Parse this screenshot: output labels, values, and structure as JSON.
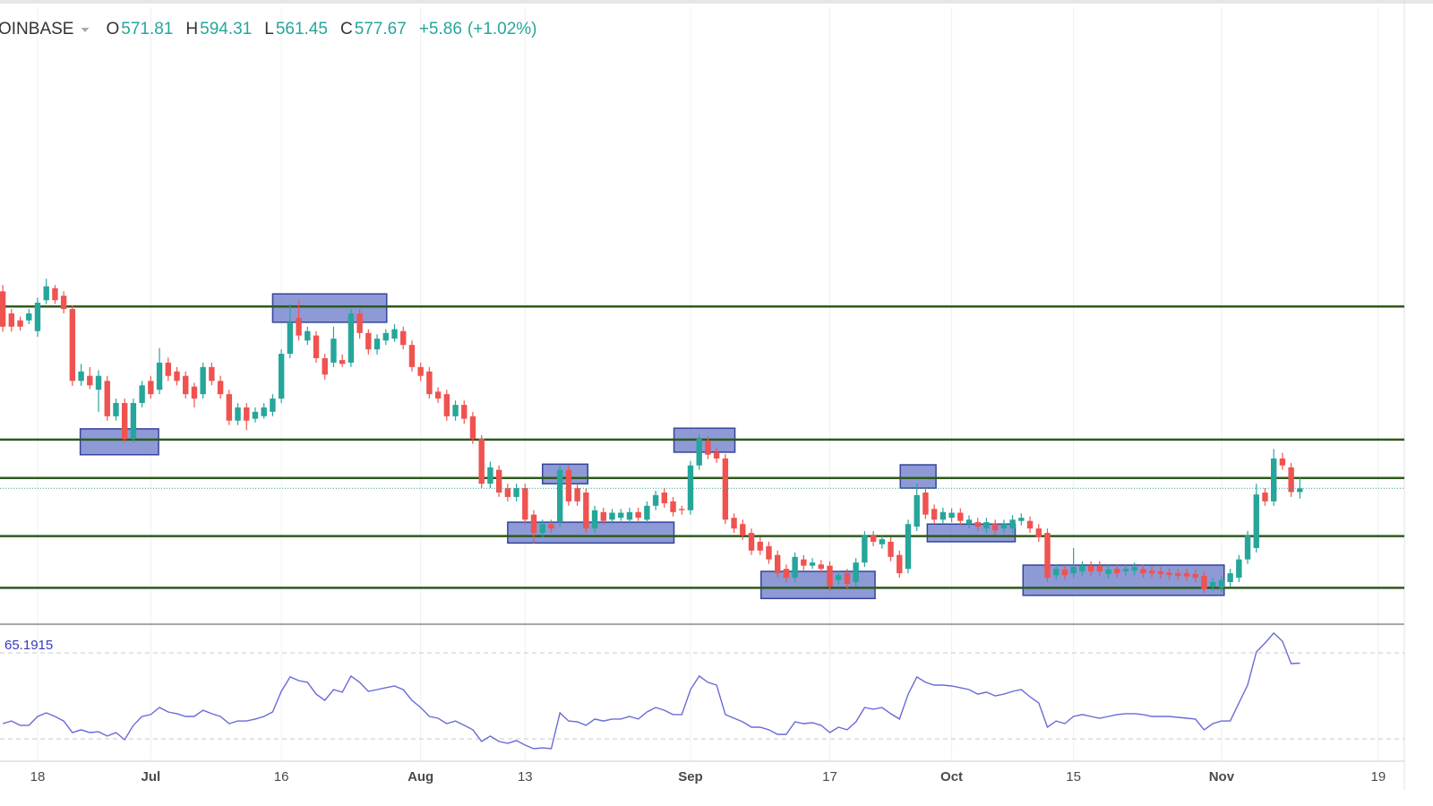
{
  "chart_data": {
    "type": "candlestick",
    "symbol": "OINBASE",
    "ohlc_keys": [
      "O",
      "H",
      "L",
      "C"
    ],
    "change": {
      "value": 5.86,
      "label": "+5.86"
    },
    "change_pct": {
      "value": 1.02,
      "label": "(+1.02%)"
    },
    "up_color": "#26a69a",
    "down_color": "#ef5350",
    "level_color": "#2e5a1c",
    "zone_fill": "#6d7dca",
    "zone_stroke": "#35449a",
    "xlim": [
      -0.32,
      161
    ],
    "xticks": [
      {
        "value": 4,
        "label": "18"
      },
      {
        "value": 17,
        "label": "Jul"
      },
      {
        "value": 32,
        "label": "16"
      },
      {
        "value": 48,
        "label": "Aug"
      },
      {
        "value": 60,
        "label": "13"
      },
      {
        "value": 79,
        "label": "Sep"
      },
      {
        "value": 95,
        "label": "17"
      },
      {
        "value": 109,
        "label": "Oct"
      },
      {
        "value": 123,
        "label": "15"
      },
      {
        "value": 140,
        "label": "Nov"
      },
      {
        "value": 158,
        "label": "19"
      }
    ],
    "ylim": [
      365.1,
      1352
    ],
    "levels": [
      866,
      655,
      594,
      502,
      420
    ],
    "zones": [
      [
        8.9,
        17.9,
        672,
        631
      ],
      [
        31,
        44.1,
        886,
        841
      ],
      [
        62,
        67.2,
        616,
        585
      ],
      [
        58,
        77.1,
        524,
        491
      ],
      [
        77.1,
        84.1,
        673,
        635
      ],
      [
        87.1,
        100.2,
        446,
        403
      ],
      [
        103.1,
        107.2,
        615,
        578
      ],
      [
        106.2,
        116.3,
        521,
        493
      ],
      [
        117.2,
        140.3,
        456,
        408
      ]
    ],
    "candles": [
      [
        890,
        900,
        826,
        834
      ],
      [
        855,
        862,
        826,
        834
      ],
      [
        844,
        850,
        828,
        834
      ],
      [
        844,
        862,
        838,
        855
      ],
      [
        827,
        880,
        818,
        872
      ],
      [
        876,
        910,
        870,
        898
      ],
      [
        895,
        900,
        870,
        876
      ],
      [
        883,
        890,
        855,
        862
      ],
      [
        862,
        868,
        740,
        748
      ],
      [
        748,
        775,
        740,
        763
      ],
      [
        756,
        770,
        735,
        741
      ],
      [
        734,
        765,
        699,
        756
      ],
      [
        748,
        756,
        685,
        692
      ],
      [
        692,
        720,
        685,
        713
      ],
      [
        713,
        720,
        650,
        656
      ],
      [
        656,
        720,
        650,
        713
      ],
      [
        713,
        748,
        706,
        741
      ],
      [
        748,
        756,
        720,
        727
      ],
      [
        734,
        800,
        727,
        777
      ],
      [
        777,
        785,
        748,
        756
      ],
      [
        763,
        770,
        741,
        748
      ],
      [
        756,
        763,
        720,
        727
      ],
      [
        739,
        745,
        706,
        720
      ],
      [
        727,
        777,
        720,
        770
      ],
      [
        770,
        777,
        741,
        748
      ],
      [
        748,
        756,
        720,
        727
      ],
      [
        727,
        734,
        678,
        685
      ],
      [
        685,
        713,
        678,
        706
      ],
      [
        706,
        713,
        670,
        685
      ],
      [
        688,
        706,
        682,
        699
      ],
      [
        692,
        713,
        688,
        706
      ],
      [
        699,
        727,
        692,
        720
      ],
      [
        720,
        798,
        713,
        791
      ],
      [
        791,
        870,
        784,
        841
      ],
      [
        848,
        875,
        812,
        820
      ],
      [
        812,
        834,
        805,
        827
      ],
      [
        820,
        827,
        777,
        784
      ],
      [
        784,
        791,
        750,
        758
      ],
      [
        777,
        834,
        770,
        815
      ],
      [
        781,
        790,
        770,
        775
      ],
      [
        777,
        862,
        770,
        855
      ],
      [
        855,
        862,
        815,
        824
      ],
      [
        824,
        830,
        790,
        798
      ],
      [
        798,
        822,
        790,
        815
      ],
      [
        812,
        830,
        805,
        824
      ],
      [
        815,
        838,
        810,
        830
      ],
      [
        827,
        834,
        798,
        805
      ],
      [
        805,
        812,
        763,
        770
      ],
      [
        770,
        777,
        748,
        756
      ],
      [
        763,
        770,
        720,
        727
      ],
      [
        731,
        738,
        713,
        720
      ],
      [
        727,
        734,
        685,
        692
      ],
      [
        692,
        717,
        685,
        710
      ],
      [
        710,
        717,
        680,
        688
      ],
      [
        692,
        699,
        648,
        656
      ],
      [
        656,
        662,
        578,
        585
      ],
      [
        585,
        620,
        578,
        611
      ],
      [
        607,
        614,
        564,
        571
      ],
      [
        578,
        585,
        557,
        564
      ],
      [
        564,
        585,
        557,
        578
      ],
      [
        578,
        585,
        520,
        528
      ],
      [
        536,
        543,
        490,
        507
      ],
      [
        507,
        528,
        500,
        521
      ],
      [
        521,
        528,
        507,
        514
      ],
      [
        524,
        614,
        517,
        607
      ],
      [
        607,
        614,
        550,
        557
      ],
      [
        578,
        585,
        550,
        557
      ],
      [
        571,
        578,
        507,
        514
      ],
      [
        514,
        550,
        507,
        543
      ],
      [
        540,
        547,
        520,
        526
      ],
      [
        528,
        545,
        521,
        539
      ],
      [
        531,
        545,
        526,
        539
      ],
      [
        528,
        547,
        521,
        540
      ],
      [
        540,
        547,
        526,
        531
      ],
      [
        528,
        557,
        521,
        550
      ],
      [
        550,
        574,
        543,
        567
      ],
      [
        571,
        578,
        547,
        554
      ],
      [
        557,
        564,
        533,
        540
      ],
      [
        545,
        550,
        536,
        543
      ],
      [
        543,
        621,
        536,
        614
      ],
      [
        614,
        663,
        607,
        656
      ],
      [
        653,
        660,
        624,
        631
      ],
      [
        635,
        642,
        618,
        625
      ],
      [
        625,
        632,
        521,
        528
      ],
      [
        531,
        538,
        507,
        514
      ],
      [
        521,
        528,
        496,
        503
      ],
      [
        507,
        514,
        472,
        479
      ],
      [
        493,
        500,
        472,
        479
      ],
      [
        486,
        493,
        458,
        465
      ],
      [
        472,
        479,
        436,
        443
      ],
      [
        450,
        457,
        429,
        436
      ],
      [
        436,
        476,
        429,
        469
      ],
      [
        465,
        472,
        448,
        455
      ],
      [
        455,
        467,
        450,
        460
      ],
      [
        457,
        464,
        443,
        450
      ],
      [
        455,
        462,
        415,
        422
      ],
      [
        432,
        447,
        425,
        440
      ],
      [
        443,
        450,
        419,
        426
      ],
      [
        429,
        467,
        422,
        460
      ],
      [
        460,
        510,
        453,
        503
      ],
      [
        503,
        510,
        486,
        493
      ],
      [
        489,
        504,
        482,
        497
      ],
      [
        493,
        500,
        462,
        469
      ],
      [
        472,
        479,
        436,
        443
      ],
      [
        450,
        528,
        443,
        521
      ],
      [
        517,
        585,
        510,
        567
      ],
      [
        571,
        578,
        529,
        536
      ],
      [
        545,
        552,
        521,
        528
      ],
      [
        528,
        547,
        521,
        540
      ],
      [
        531,
        546,
        524,
        539
      ],
      [
        539,
        546,
        519,
        526
      ],
      [
        521,
        535,
        514,
        528
      ],
      [
        524,
        531,
        510,
        517
      ],
      [
        514,
        531,
        507,
        524
      ],
      [
        521,
        528,
        504,
        511
      ],
      [
        514,
        528,
        507,
        521
      ],
      [
        514,
        535,
        507,
        528
      ],
      [
        526,
        538,
        519,
        531
      ],
      [
        526,
        533,
        507,
        514
      ],
      [
        514,
        521,
        493,
        500
      ],
      [
        507,
        514,
        429,
        436
      ],
      [
        440,
        457,
        433,
        450
      ],
      [
        449,
        456,
        433,
        440
      ],
      [
        443,
        483,
        436,
        453
      ],
      [
        446,
        462,
        439,
        455
      ],
      [
        455,
        462,
        439,
        446
      ],
      [
        455,
        462,
        439,
        446
      ],
      [
        442,
        456,
        435,
        449
      ],
      [
        450,
        457,
        436,
        443
      ],
      [
        446,
        457,
        439,
        450
      ],
      [
        447,
        460,
        440,
        453
      ],
      [
        450,
        457,
        436,
        443
      ],
      [
        447,
        454,
        436,
        443
      ],
      [
        446,
        453,
        435,
        442
      ],
      [
        444,
        451,
        433,
        440
      ],
      [
        443,
        450,
        432,
        439
      ],
      [
        443,
        450,
        431,
        438
      ],
      [
        442,
        449,
        429,
        436
      ],
      [
        439,
        446,
        411,
        418
      ],
      [
        422,
        436,
        415,
        429
      ],
      [
        420,
        439,
        413,
        432
      ],
      [
        429,
        450,
        422,
        443
      ],
      [
        436,
        472,
        429,
        465
      ],
      [
        465,
        510,
        458,
        503
      ],
      [
        483,
        585,
        476,
        568
      ],
      [
        571,
        578,
        550,
        557
      ],
      [
        557,
        640,
        550,
        625
      ],
      [
        625,
        634,
        607,
        614
      ],
      [
        611,
        618,
        564,
        571.81
      ],
      [
        571.81,
        594.31,
        561.45,
        577.67
      ]
    ],
    "rsi": {
      "color": "#6a6ad8",
      "label_color": "#3a3ab8",
      "ylim": [
        21.67,
        80
      ],
      "levels": [
        70,
        30
      ],
      "values": [
        37.1,
        38.3,
        36.3,
        36.3,
        40.4,
        42.1,
        40.4,
        38.3,
        32.9,
        34.2,
        32.9,
        33.3,
        31.3,
        32.9,
        29.6,
        36.3,
        40.4,
        41.3,
        44.6,
        42.5,
        41.7,
        40.4,
        40.4,
        43.3,
        41.7,
        40.4,
        37.1,
        38.3,
        38.3,
        39.2,
        40.4,
        42.5,
        52.1,
        58.8,
        57.1,
        56.3,
        50.8,
        47.9,
        52.9,
        51.7,
        59.2,
        56.3,
        52.1,
        52.9,
        53.8,
        54.6,
        52.9,
        47.9,
        44.6,
        40.4,
        39.6,
        37.1,
        38.3,
        36.3,
        34.2,
        28.8,
        31.3,
        28.8,
        27.9,
        29.2,
        27.1,
        25.4,
        25.8,
        25.4,
        42.1,
        38.3,
        37.9,
        36.3,
        39.2,
        38.3,
        39.2,
        39.2,
        40.4,
        39.2,
        42.5,
        44.6,
        43.3,
        41.3,
        41.3,
        52.9,
        59.2,
        56.3,
        55,
        41.3,
        39.6,
        37.9,
        35.4,
        35.4,
        34.2,
        32.1,
        32.1,
        37.9,
        37.1,
        37.5,
        36.3,
        32.9,
        35.4,
        34.2,
        37.9,
        44.6,
        43.8,
        44.6,
        41.7,
        39.2,
        50.8,
        58.8,
        56.3,
        55,
        55,
        54.6,
        53.8,
        52.9,
        50.8,
        51.7,
        50,
        50.8,
        52.1,
        52.9,
        49.6,
        46.7,
        35.4,
        38.3,
        37.1,
        40.4,
        41.3,
        40.4,
        39.6,
        40.4,
        41.3,
        41.7,
        41.7,
        41.3,
        40.4,
        40.4,
        40.4,
        40,
        39.6,
        39.2,
        34.2,
        37.1,
        38.3,
        38.3,
        46.7,
        55,
        70.4,
        74.6,
        79.2,
        75.4,
        65,
        65.1915
      ]
    }
  }
}
